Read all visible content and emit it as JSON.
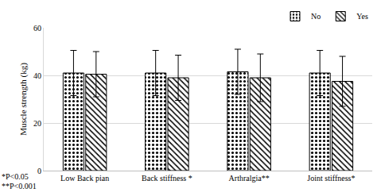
{
  "chart_data": {
    "type": "bar",
    "y_label": "Muscle strength (kg)",
    "categories": [
      "Low Back pian",
      "Back stiffness *",
      "Arthralgia**",
      "Joint stiffness*"
    ],
    "series": [
      {
        "name": "No",
        "color": "#000000",
        "marker": "dots",
        "values": [
          41,
          41,
          41.5,
          41
        ],
        "errors": [
          9.5,
          9.5,
          9.5,
          9.5
        ]
      },
      {
        "name": "Yes",
        "color": "#000000",
        "marker": "hatch",
        "values": [
          40.5,
          39,
          39,
          37.5
        ],
        "errors": [
          9.5,
          9.5,
          10,
          10.5
        ]
      }
    ],
    "ylim": [
      0,
      60
    ],
    "yticks": [
      0,
      20,
      40,
      60
    ],
    "grid": true,
    "legend": "top right",
    "annotations": [
      "*P<0.05",
      "**P<0.001"
    ]
  }
}
